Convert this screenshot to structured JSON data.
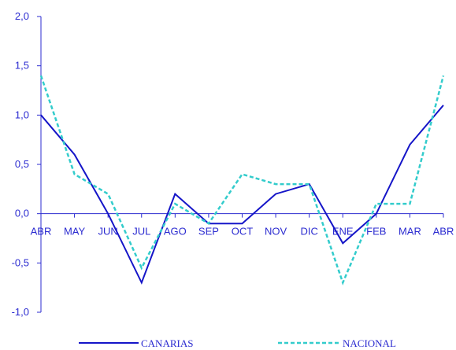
{
  "chart_data": {
    "type": "line",
    "title": "",
    "xlabel": "",
    "ylabel": "",
    "categories": [
      "ABR",
      "MAY",
      "JUN",
      "JUL",
      "AGO",
      "SEP",
      "OCT",
      "NOV",
      "DIC",
      "ENE",
      "FEB",
      "MAR",
      "ABR"
    ],
    "y_ticks": [
      "2,0",
      "1,5",
      "1,0",
      "0,5",
      "0,0",
      "-0,5",
      "-1,0"
    ],
    "y_tick_values": [
      2.0,
      1.5,
      1.0,
      0.5,
      0.0,
      -0.5,
      -1.0
    ],
    "ylim": [
      -1.0,
      2.0
    ],
    "grid": false,
    "legend_position": "bottom",
    "series": [
      {
        "name": "CANARIAS",
        "style": "solid",
        "color": "#1515c8",
        "values": [
          1.0,
          0.6,
          0.0,
          -0.7,
          0.2,
          -0.1,
          -0.1,
          0.2,
          0.3,
          -0.3,
          0.0,
          0.7,
          1.1
        ]
      },
      {
        "name": "NACIONAL",
        "style": "dashed",
        "color": "#33cccc",
        "values": [
          1.4,
          0.4,
          0.2,
          -0.55,
          0.1,
          -0.1,
          0.4,
          0.3,
          0.3,
          -0.7,
          0.1,
          0.1,
          1.4
        ]
      }
    ]
  }
}
